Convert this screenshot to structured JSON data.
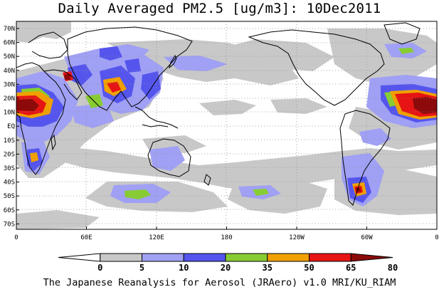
{
  "title": "Daily Averaged PM2.5 [ug/m3]: 10Dec2011",
  "footer": "The Japanese Reanalysis for Aerosol (JRAero) v1.0 MRI/KU_RIAM",
  "lat_labels": [
    "70N",
    "60N",
    "50N",
    "40N",
    "30N",
    "20N",
    "10N",
    "EQ",
    "10S",
    "20S",
    "30S",
    "40S",
    "50S",
    "60S",
    "70S"
  ],
  "lon_labels": [
    "0",
    "60E",
    "120E",
    "180",
    "120W",
    "60W",
    "0"
  ],
  "colorbar": {
    "ticks": [
      "0",
      "5",
      "10",
      "20",
      "35",
      "50",
      "65",
      "80"
    ],
    "colors": [
      "#ffffff",
      "#c8c8c8",
      "#a0a0f5",
      "#5555ee",
      "#88cc33",
      "#f0a000",
      "#e61414",
      "#8c0a0a"
    ]
  }
}
